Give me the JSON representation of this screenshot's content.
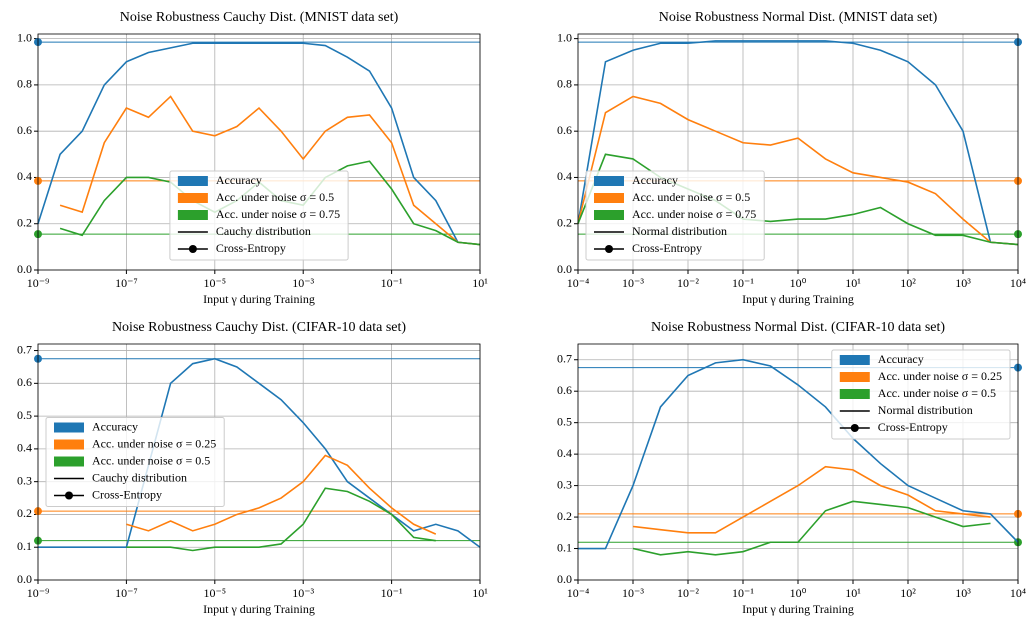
{
  "chart_data": [
    {
      "type": "line",
      "title": "Noise Robustness Cauchy Dist. (MNIST data set)",
      "xlabel": "Input γ during Training",
      "log_x": true,
      "grid": true,
      "legend": "lower center",
      "baseline_marker": "left",
      "x": [
        1e-09,
        3.16e-09,
        1e-08,
        3.16e-08,
        1e-07,
        3.16e-07,
        1e-06,
        3.16e-06,
        1e-05,
        3.16e-05,
        0.0001,
        0.000316,
        0.001,
        0.00316,
        0.01,
        0.0316,
        0.1,
        0.316,
        1,
        3.16,
        10
      ],
      "xlim": [
        1e-09,
        10
      ],
      "xticks": [
        {
          "value": 1e-09,
          "label": "10⁻⁹"
        },
        {
          "value": 1e-07,
          "label": "10⁻⁷"
        },
        {
          "value": 1e-05,
          "label": "10⁻⁵"
        },
        {
          "value": 0.001,
          "label": "10⁻³"
        },
        {
          "value": 0.1,
          "label": "10⁻¹"
        },
        {
          "value": 10,
          "label": "10¹"
        }
      ],
      "ylim": [
        0,
        1.02
      ],
      "yticks": [
        {
          "value": 0,
          "label": "0.0"
        },
        0.2,
        0.4,
        0.6,
        0.8,
        {
          "value": 1,
          "label": "1.0"
        }
      ],
      "series": [
        {
          "name": "Accuracy",
          "color": "#1f77b4",
          "baseline": 0.985,
          "values": [
            0.2,
            0.5,
            0.6,
            0.8,
            0.9,
            0.94,
            0.96,
            0.98,
            0.98,
            0.98,
            0.98,
            0.98,
            0.98,
            0.97,
            0.92,
            0.86,
            0.7,
            0.4,
            0.3,
            0.12,
            0.11
          ]
        },
        {
          "name": "Acc. under noise σ = 0.5",
          "color": "#ff7f0e",
          "baseline": 0.385,
          "values": [
            null,
            0.28,
            0.25,
            0.55,
            0.7,
            0.66,
            0.75,
            0.6,
            0.58,
            0.62,
            0.7,
            0.6,
            0.48,
            0.6,
            0.66,
            0.67,
            0.55,
            0.28,
            0.2,
            0.12,
            0.11
          ]
        },
        {
          "name": "Acc. under noise σ = 0.75",
          "color": "#2ca02c",
          "baseline": 0.155,
          "values": [
            null,
            0.18,
            0.15,
            0.3,
            0.4,
            0.4,
            0.38,
            0.3,
            0.25,
            0.3,
            0.38,
            0.3,
            0.28,
            0.4,
            0.45,
            0.47,
            0.35,
            0.2,
            0.17,
            0.12,
            0.11
          ]
        }
      ],
      "legend_extra": [
        "Cauchy distribution",
        "Cross-Entropy"
      ]
    },
    {
      "type": "line",
      "title": "Noise Robustness Normal Dist. (MNIST data set)",
      "xlabel": "Input γ during Training",
      "log_x": true,
      "grid": true,
      "legend": "lower left",
      "baseline_marker": "right",
      "x": [
        0.0001,
        0.000316,
        0.001,
        0.00316,
        0.01,
        0.0316,
        0.1,
        0.316,
        1,
        3.16,
        10,
        31.6,
        100,
        316,
        1000,
        3162,
        10000
      ],
      "xlim": [
        0.0001,
        10000
      ],
      "xticks": [
        {
          "value": 0.0001,
          "label": "10⁻⁴"
        },
        {
          "value": 0.001,
          "label": "10⁻³"
        },
        {
          "value": 0.01,
          "label": "10⁻²"
        },
        {
          "value": 0.1,
          "label": "10⁻¹"
        },
        {
          "value": 1,
          "label": "10⁰"
        },
        {
          "value": 10,
          "label": "10¹"
        },
        {
          "value": 100,
          "label": "10²"
        },
        {
          "value": 1000,
          "label": "10³"
        },
        {
          "value": 10000,
          "label": "10⁴"
        }
      ],
      "ylim": [
        0,
        1.02
      ],
      "yticks": [
        {
          "value": 0,
          "label": "0.0"
        },
        0.2,
        0.4,
        0.6,
        0.8,
        {
          "value": 1,
          "label": "1.0"
        }
      ],
      "series": [
        {
          "name": "Accuracy",
          "color": "#1f77b4",
          "baseline": 0.985,
          "values": [
            0.2,
            0.9,
            0.95,
            0.98,
            0.98,
            0.99,
            0.99,
            0.99,
            0.99,
            0.99,
            0.98,
            0.95,
            0.9,
            0.8,
            0.6,
            0.12,
            0.11
          ]
        },
        {
          "name": "Acc. under noise σ = 0.5",
          "color": "#ff7f0e",
          "baseline": 0.385,
          "values": [
            0.2,
            0.68,
            0.75,
            0.72,
            0.65,
            0.6,
            0.55,
            0.54,
            0.57,
            0.48,
            0.42,
            0.4,
            0.38,
            0.33,
            0.22,
            0.12,
            0.11
          ]
        },
        {
          "name": "Acc. under noise σ = 0.75",
          "color": "#2ca02c",
          "baseline": 0.155,
          "values": [
            0.2,
            0.5,
            0.48,
            0.4,
            0.35,
            0.3,
            0.22,
            0.21,
            0.22,
            0.22,
            0.24,
            0.27,
            0.2,
            0.15,
            0.15,
            0.12,
            0.11
          ]
        }
      ],
      "legend_extra": [
        "Normal distribution",
        "Cross-Entropy"
      ]
    },
    {
      "type": "line",
      "title": "Noise Robustness Cauchy Dist. (CIFAR-10 data set)",
      "xlabel": "Input γ during Training",
      "log_x": true,
      "grid": true,
      "legend": "center left",
      "baseline_marker": "left",
      "x": [
        1e-09,
        3.16e-09,
        1e-08,
        3.16e-08,
        1e-07,
        3.16e-07,
        1e-06,
        3.16e-06,
        1e-05,
        3.16e-05,
        0.0001,
        0.000316,
        0.001,
        0.00316,
        0.01,
        0.0316,
        0.1,
        0.316,
        1,
        3.16,
        10
      ],
      "xlim": [
        1e-09,
        10
      ],
      "xticks": [
        {
          "value": 1e-09,
          "label": "10⁻⁹"
        },
        {
          "value": 1e-07,
          "label": "10⁻⁷"
        },
        {
          "value": 1e-05,
          "label": "10⁻⁵"
        },
        {
          "value": 0.001,
          "label": "10⁻³"
        },
        {
          "value": 0.1,
          "label": "10⁻¹"
        },
        {
          "value": 10,
          "label": "10¹"
        }
      ],
      "ylim": [
        0,
        0.72
      ],
      "yticks": [
        {
          "value": 0,
          "label": "0.0"
        },
        0.1,
        0.2,
        0.3,
        0.4,
        0.5,
        0.6,
        0.7
      ],
      "series": [
        {
          "name": "Accuracy",
          "color": "#1f77b4",
          "baseline": 0.675,
          "values": [
            0.1,
            0.1,
            0.1,
            0.1,
            0.1,
            0.35,
            0.6,
            0.66,
            0.675,
            0.65,
            0.6,
            0.55,
            0.48,
            0.4,
            0.3,
            0.25,
            0.2,
            0.15,
            0.17,
            0.15,
            0.1
          ]
        },
        {
          "name": "Acc. under noise σ = 0.25",
          "color": "#ff7f0e",
          "baseline": 0.21,
          "values": [
            null,
            null,
            null,
            null,
            0.17,
            0.15,
            0.18,
            0.15,
            0.17,
            0.2,
            0.22,
            0.25,
            0.3,
            0.38,
            0.35,
            0.28,
            0.22,
            0.17,
            0.14,
            null,
            null
          ]
        },
        {
          "name": "Acc. under noise σ = 0.5",
          "color": "#2ca02c",
          "baseline": 0.12,
          "values": [
            null,
            null,
            null,
            null,
            0.1,
            0.1,
            0.1,
            0.09,
            0.1,
            0.1,
            0.1,
            0.11,
            0.17,
            0.28,
            0.27,
            0.24,
            0.2,
            0.13,
            0.12,
            null,
            null
          ]
        }
      ],
      "legend_extra": [
        "Cauchy distribution",
        "Cross-Entropy"
      ]
    },
    {
      "type": "line",
      "title": "Noise Robustness Normal Dist. (CIFAR-10 data set)",
      "xlabel": "Input γ during Training",
      "log_x": true,
      "grid": true,
      "legend": "upper right",
      "baseline_marker": "right",
      "x": [
        0.0001,
        0.000316,
        0.001,
        0.00316,
        0.01,
        0.0316,
        0.1,
        0.316,
        1,
        3.16,
        10,
        31.6,
        100,
        316,
        1000,
        3162,
        10000
      ],
      "xlim": [
        0.0001,
        10000
      ],
      "xticks": [
        {
          "value": 0.0001,
          "label": "10⁻⁴"
        },
        {
          "value": 0.001,
          "label": "10⁻³"
        },
        {
          "value": 0.01,
          "label": "10⁻²"
        },
        {
          "value": 0.1,
          "label": "10⁻¹"
        },
        {
          "value": 1,
          "label": "10⁰"
        },
        {
          "value": 10,
          "label": "10¹"
        },
        {
          "value": 100,
          "label": "10²"
        },
        {
          "value": 1000,
          "label": "10³"
        },
        {
          "value": 10000,
          "label": "10⁴"
        }
      ],
      "ylim": [
        0,
        0.75
      ],
      "yticks": [
        {
          "value": 0,
          "label": "0.0"
        },
        0.1,
        0.2,
        0.3,
        0.4,
        0.5,
        0.6,
        0.7
      ],
      "series": [
        {
          "name": "Accuracy",
          "color": "#1f77b4",
          "baseline": 0.675,
          "values": [
            0.1,
            0.1,
            0.3,
            0.55,
            0.65,
            0.69,
            0.7,
            0.68,
            0.62,
            0.55,
            0.45,
            0.37,
            0.3,
            0.26,
            0.22,
            0.21,
            0.12
          ]
        },
        {
          "name": "Acc. under noise σ = 0.25",
          "color": "#ff7f0e",
          "baseline": 0.21,
          "values": [
            null,
            null,
            0.17,
            0.16,
            0.15,
            0.15,
            0.2,
            0.25,
            0.3,
            0.36,
            0.35,
            0.3,
            0.27,
            0.22,
            0.21,
            0.2,
            null
          ]
        },
        {
          "name": "Acc. under noise σ = 0.5",
          "color": "#2ca02c",
          "baseline": 0.12,
          "values": [
            null,
            null,
            0.1,
            0.08,
            0.09,
            0.08,
            0.09,
            0.12,
            0.12,
            0.22,
            0.25,
            0.24,
            0.23,
            0.2,
            0.17,
            0.18,
            null
          ]
        }
      ],
      "legend_extra": [
        "Normal distribution",
        "Cross-Entropy"
      ]
    }
  ]
}
